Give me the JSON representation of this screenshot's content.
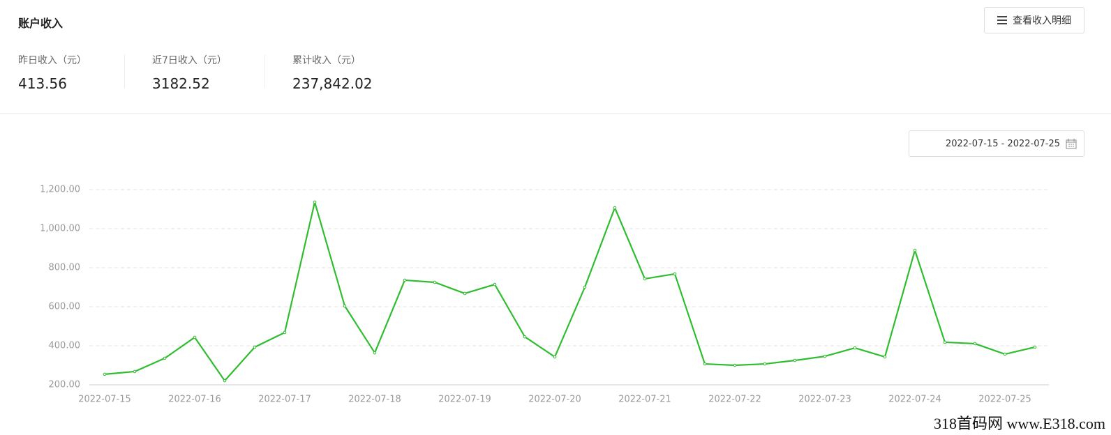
{
  "header": {
    "title": "账户收入",
    "button": "查看收入明细"
  },
  "stats": [
    {
      "label": "昨日收入（元）",
      "value": "413.56"
    },
    {
      "label": "近7日收入（元）",
      "value": "3182.52"
    },
    {
      "label": "累计收入（元）",
      "value": "237,842.02"
    }
  ],
  "date_range": "2022-07-15 - 2022-07-25",
  "watermark": "318首码网  www.E318.com",
  "chart_data": {
    "type": "line",
    "categories": [
      "2022-07-15",
      null,
      null,
      "2022-07-16",
      null,
      null,
      "2022-07-17",
      null,
      null,
      "2022-07-18",
      null,
      null,
      "2022-07-19",
      null,
      null,
      "2022-07-20",
      null,
      null,
      "2022-07-21",
      null,
      null,
      "2022-07-22",
      null,
      null,
      "2022-07-23",
      null,
      null,
      "2022-07-24",
      null,
      null,
      "2022-07-25",
      null
    ],
    "values": [
      254,
      268,
      336,
      443,
      221,
      393,
      468,
      1136,
      604,
      364,
      736,
      725,
      668,
      714,
      446,
      343,
      700,
      1107,
      743,
      768,
      307,
      300,
      307,
      325,
      346,
      389,
      343,
      889,
      418,
      411,
      357,
      393
    ],
    "color": "#2fbd2f",
    "ylim": [
      200,
      1200
    ],
    "yticks": [
      {
        "value": 200,
        "label": "200.00"
      },
      {
        "value": 400,
        "label": "400.00"
      },
      {
        "value": 600,
        "label": "600.00"
      },
      {
        "value": 800,
        "label": "800.00"
      },
      {
        "value": 1000,
        "label": "1,000.00"
      },
      {
        "value": 1200,
        "label": "1,200.00"
      }
    ],
    "grid": true
  }
}
